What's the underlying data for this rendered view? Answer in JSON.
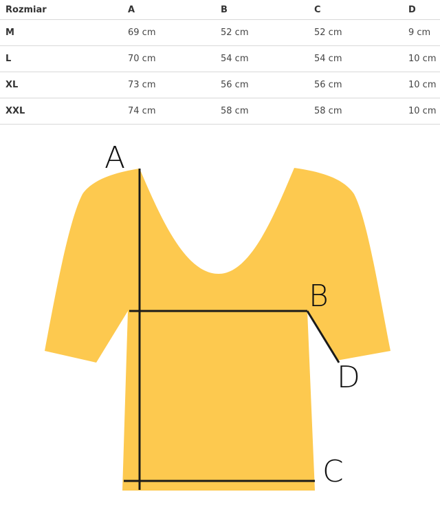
{
  "table": {
    "headers": [
      "Rozmiar",
      "A",
      "B",
      "C",
      "D"
    ],
    "rows": [
      [
        "M",
        "69 cm",
        "52 cm",
        "52 cm",
        "9 cm"
      ],
      [
        "L",
        "70 cm",
        "54 cm",
        "54 cm",
        "10 cm"
      ],
      [
        "XL",
        "73 cm",
        "56 cm",
        "56 cm",
        "10 cm"
      ],
      [
        "XXL",
        "74 cm",
        "58 cm",
        "58 cm",
        "10 cm"
      ]
    ]
  },
  "diagram": {
    "labels": {
      "a": "A",
      "b": "B",
      "c": "C",
      "d": "D"
    },
    "shirt_color": "#FDC94F"
  }
}
